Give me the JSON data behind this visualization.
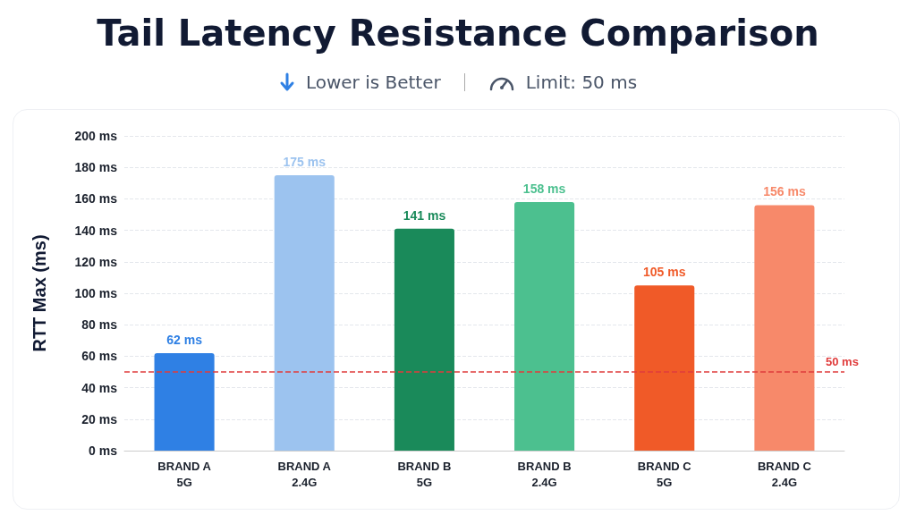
{
  "chart_data": {
    "type": "bar",
    "title": "Tail Latency Resistance Comparison",
    "subtitle": "Lower is Better",
    "annotations": [
      "Limit: 50 ms"
    ],
    "ylabel": "RTT Max (ms)",
    "categories": [
      "BRAND A\n5G",
      "BRAND A\n2.4G",
      "BRAND B\n5G",
      "BRAND B\n2.4G",
      "BRAND C\n5G",
      "BRAND C\n2.4G"
    ],
    "values": [
      62,
      175,
      141,
      158,
      105,
      156
    ],
    "value_labels": [
      "62 ms",
      "175 ms",
      "141 ms",
      "158 ms",
      "105 ms",
      "156 ms"
    ],
    "colors": [
      "#2f80e4",
      "#9cc3ef",
      "#1a8a5a",
      "#4cc08f",
      "#f05a28",
      "#f7896a"
    ],
    "ylim": [
      0,
      200
    ],
    "yticks": [
      {
        "value": 0,
        "label": "0 ms"
      },
      {
        "value": 20,
        "label": "20 ms"
      },
      {
        "value": 40,
        "label": "40 ms"
      },
      {
        "value": 60,
        "label": "60 ms"
      },
      {
        "value": 80,
        "label": "80 ms"
      },
      {
        "value": 100,
        "label": "100 ms"
      },
      {
        "value": 120,
        "label": "120 ms"
      },
      {
        "value": 140,
        "label": "140 ms"
      },
      {
        "value": 160,
        "label": "160 ms"
      },
      {
        "value": 180,
        "label": "180 ms"
      },
      {
        "value": 200,
        "label": "200 ms"
      }
    ],
    "ref_lines": [
      {
        "axis": "y",
        "value": 50,
        "label": "50 ms",
        "color": "#e03c3c",
        "line_style": "dashed"
      }
    ],
    "grid": "y"
  }
}
